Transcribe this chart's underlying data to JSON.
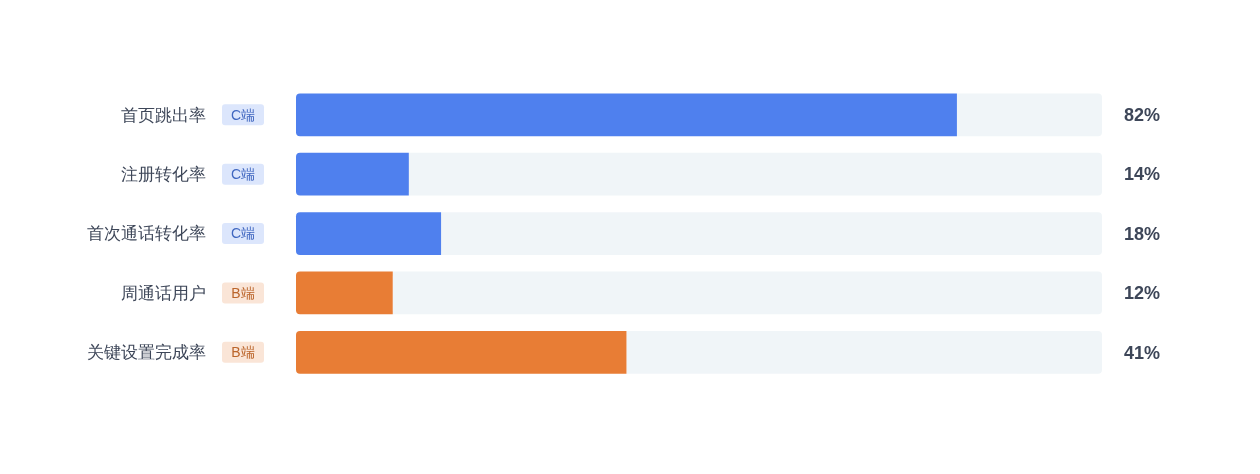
{
  "chart_data": {
    "type": "bar",
    "orientation": "horizontal",
    "categories": [
      "首页跳出率",
      "注册转化率",
      "首次通话转化率",
      "周通话用户",
      "关键设置完成率"
    ],
    "values": [
      82,
      14,
      18,
      12,
      41
    ],
    "colors": [
      "#4f80ee",
      "#4f80ee",
      "#4f80ee",
      "#e87d35",
      "#e87d35"
    ],
    "value_labels": [
      "82%",
      "14%",
      "18%",
      "12%",
      "41%"
    ],
    "xlim": [
      0,
      100
    ],
    "tick_labels": false,
    "annotations": [
      "C端",
      "C端",
      "C端",
      "B端",
      "B端"
    ]
  }
}
